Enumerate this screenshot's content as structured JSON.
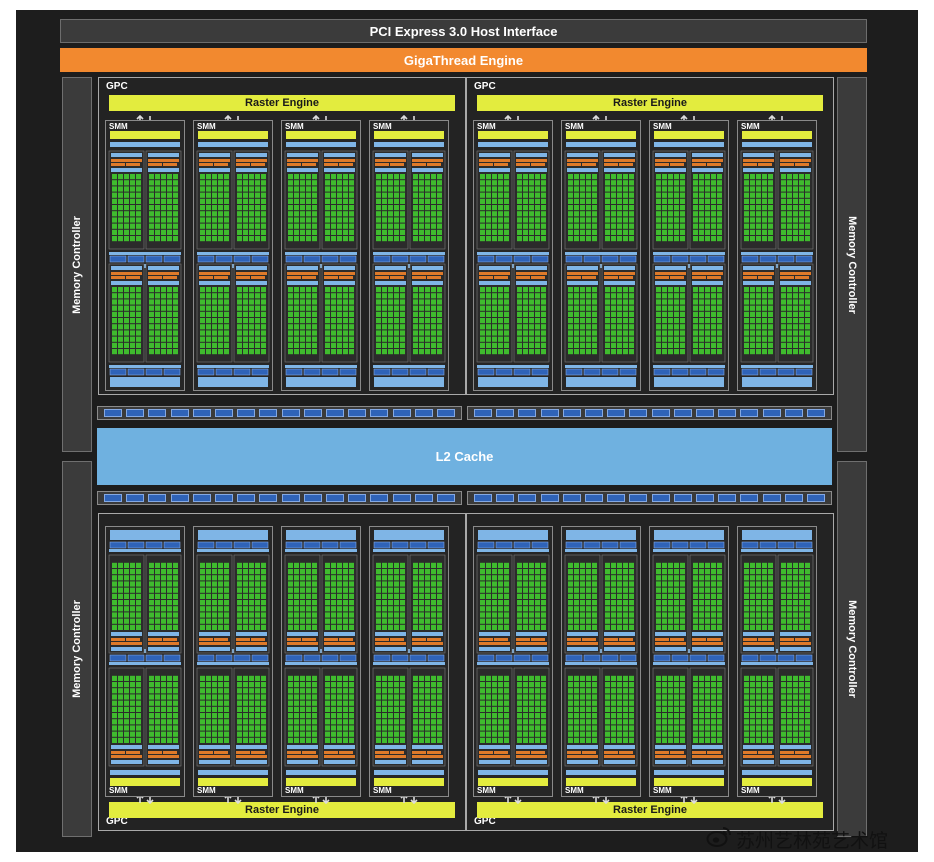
{
  "top": {
    "pcie_label": "PCI Express 3.0 Host Interface",
    "gigathread_label": "GigaThread Engine"
  },
  "memory_controller_label": "Memory Controller",
  "gpc_label": "GPC",
  "raster_engine_label": "Raster Engine",
  "smm_label": "SMM",
  "l2_cache_label": "L2 Cache",
  "colors": {
    "background": "#1d1d1d",
    "pcie": "#3b3b3b",
    "gigathread": "#f2892f",
    "raster_engine": "#e3ec3e",
    "l2_cache": "#6fb1e0",
    "core": "#3fbb2e",
    "scheduler": "#2f63b8",
    "dispatch": "#de7a2a",
    "cache_bar": "#7fb5e6"
  },
  "watermark": {
    "text": "苏州艺林苑艺术馆",
    "icon": "weibo-icon"
  }
}
